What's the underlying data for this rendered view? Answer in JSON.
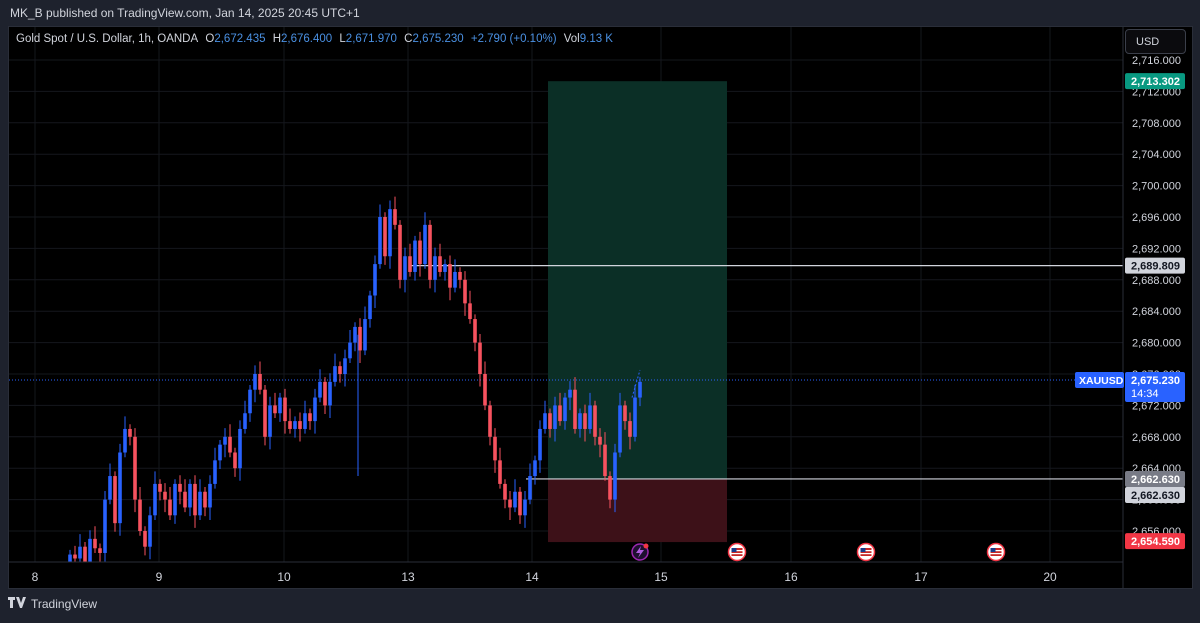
{
  "header": {
    "publisher_line": "MK_B published on TradingView.com, Jan 14, 2025 20:45 UTC+1"
  },
  "symbol": {
    "description": "Gold Spot / U.S. Dollar, 1h, OANDA",
    "open_label": "O",
    "open": "2,672.435",
    "high_label": "H",
    "high": "2,676.400",
    "low_label": "L",
    "low": "2,671.970",
    "close_label": "C",
    "close": "2,675.230",
    "change": "+2.790 (+0.10%)",
    "vol_label": "Vol",
    "vol": "9.13 K"
  },
  "currency_button": "USD",
  "price_axis": {
    "ticks": [
      "2,716.000",
      "2,712.000",
      "2,708.000",
      "2,704.000",
      "2,700.000",
      "2,696.000",
      "2,692.000",
      "2,688.000",
      "2,684.000",
      "2,680.000",
      "2,676.000",
      "2,672.000",
      "2,668.000",
      "2,664.000",
      "2,660.000",
      "2,656.000"
    ],
    "labels": {
      "take_profit": "2,713.302",
      "resistance": "2,689.809",
      "current_symbol": "XAUUSD",
      "current": "2,675.230",
      "countdown": "14:34",
      "entry": "2,662.630",
      "entry_secondary": "2,662.630",
      "stop_loss": "2,654.590"
    }
  },
  "time_axis": {
    "ticks": [
      "8",
      "9",
      "10",
      "13",
      "14",
      "15",
      "16",
      "17",
      "20"
    ]
  },
  "colors": {
    "bull": "#2962ff",
    "bear": "#f7525f",
    "profit_zone": "#0b2f26",
    "loss_zone": "#3d1118",
    "tp_label": "#089981",
    "sl_label": "#f23645",
    "current_label": "#2962ff",
    "entry_label": "#787b86",
    "resistance_label": "#d1d4dc"
  },
  "icons": [
    "lightning-icon",
    "us-flag-icon"
  ],
  "footer": {
    "brand": "TradingView"
  },
  "chart_data": {
    "type": "candlestick",
    "symbol": "Gold Spot / U.S. Dollar",
    "interval": "1h",
    "ylim": [
      2652,
      2718
    ],
    "x_ticks": [
      "8",
      "9",
      "10",
      "13",
      "14",
      "15",
      "16",
      "17",
      "20"
    ],
    "y_ticks": [
      2716,
      2712,
      2708,
      2704,
      2700,
      2696,
      2692,
      2688,
      2684,
      2680,
      2676,
      2672,
      2668,
      2664,
      2660,
      2656
    ],
    "series": [
      {
        "name": "close",
        "values": [
          2653,
          2652.5,
          2654,
          2652,
          2655,
          2653.8,
          2653.2,
          2660,
          2663,
          2657,
          2666,
          2669,
          2668,
          2660,
          2656,
          2654,
          2658,
          2662,
          2661,
          2660,
          2658,
          2662,
          2661,
          2659,
          2662,
          2658,
          2661,
          2659,
          2662,
          2665,
          2667,
          2668,
          2666,
          2664,
          2669,
          2671,
          2674,
          2676,
          2674,
          2668,
          2672,
          2671,
          2673,
          2670,
          2669,
          2670,
          2669,
          2671,
          2670,
          2673,
          2675,
          2672,
          2675,
          2677,
          2676,
          2678,
          2680,
          2682,
          2679,
          2683,
          2686,
          2690,
          2696,
          2691,
          2697,
          2695,
          2688,
          2691,
          2689,
          2693,
          2690,
          2695,
          2688,
          2691,
          2689,
          2690,
          2687,
          2689,
          2688,
          2685,
          2683,
          2680,
          2676,
          2672,
          2668,
          2665,
          2662,
          2660,
          2659,
          2661,
          2658,
          2660,
          2663,
          2665,
          2669,
          2671,
          2669,
          2672,
          2670,
          2673,
          2674,
          2669,
          2671,
          2669,
          2672,
          2668,
          2667,
          2663,
          2660,
          2666,
          2672,
          2670,
          2668,
          2673,
          2675
        ]
      }
    ],
    "annotations": {
      "long_position": {
        "entry": 2662.63,
        "take_profit": 2713.302,
        "stop_loss": 2654.59
      },
      "resistance_line": 2689.809,
      "current_price": 2675.23
    }
  }
}
